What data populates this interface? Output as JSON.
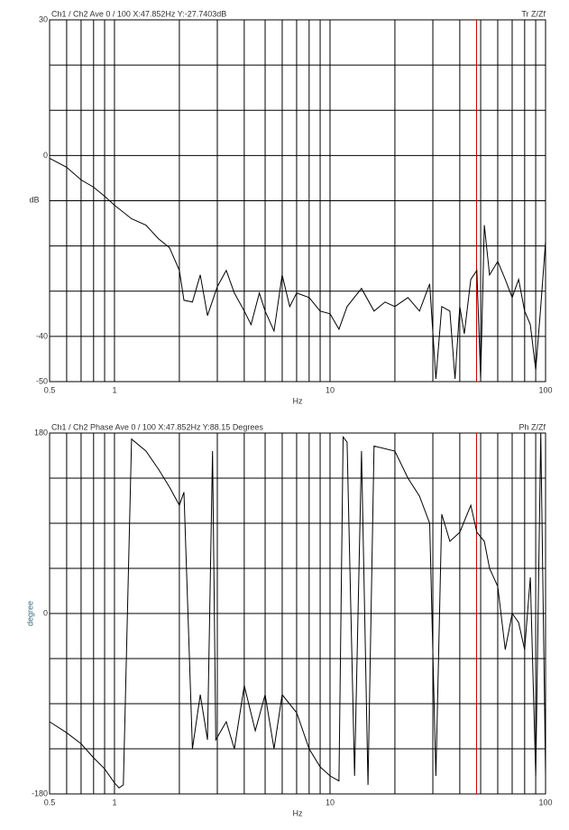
{
  "chart_data": [
    {
      "type": "line",
      "title": "Ch1 / Ch2  Ave 0 / 100  X:47.852Hz  Y:-27.7403dB",
      "trace": "Tr Z/Zf",
      "ylabel": "dB",
      "xlabel": "Hz",
      "log_x": true,
      "color": "#000000",
      "cursor_x": 47.852,
      "cursor_color": "#cc0000",
      "xlim": [
        0.5,
        100
      ],
      "xticks": [
        0.5,
        1,
        10,
        100
      ],
      "xgrid": [
        0.5,
        0.6,
        0.7,
        0.8,
        0.9,
        1,
        2,
        3,
        4,
        5,
        6,
        7,
        8,
        9,
        10,
        20,
        30,
        40,
        50,
        60,
        70,
        80,
        90,
        100
      ],
      "ylim": [
        -50,
        30
      ],
      "yticks": [
        30,
        0,
        -40,
        -50
      ],
      "ygrid": [
        30,
        20,
        10,
        0,
        -10,
        -20,
        -30,
        -40,
        -50
      ],
      "x": [
        0.5,
        0.6,
        0.7,
        0.8,
        0.9,
        1.0,
        1.2,
        1.4,
        1.6,
        1.8,
        2.0,
        2.1,
        2.3,
        2.5,
        2.7,
        3.0,
        3.3,
        3.6,
        4.0,
        4.3,
        4.7,
        5.0,
        5.5,
        6.0,
        6.5,
        7.0,
        8.0,
        9.0,
        10,
        11,
        12,
        14,
        16,
        18,
        20,
        23,
        26,
        29,
        31,
        33,
        36,
        38,
        40,
        42,
        45,
        48,
        50,
        52,
        55,
        60,
        65,
        70,
        75,
        80,
        85,
        90,
        95,
        100
      ],
      "values": [
        -0.6,
        -2.6,
        -5.4,
        -7,
        -9,
        -11,
        -14,
        -15.4,
        -18.4,
        -20.4,
        -25.4,
        -32,
        -32.4,
        -26.4,
        -35.4,
        -29,
        -25.4,
        -30.4,
        -34.4,
        -37.4,
        -30.4,
        -34.4,
        -38.8,
        -26.4,
        -33.4,
        -30.4,
        -31.4,
        -34.4,
        -35,
        -38.4,
        -33.4,
        -29.4,
        -34.4,
        -32.4,
        -33.4,
        -31.4,
        -34.4,
        -28.4,
        -49.4,
        -33.4,
        -34.4,
        -49.4,
        -33.4,
        -39.4,
        -27.4,
        -25.4,
        -49.4,
        -15.4,
        -26.4,
        -23.4,
        -27.4,
        -31.4,
        -27.4,
        -34.4,
        -37.4,
        -47.4,
        -33.4,
        -19
      ]
    },
    {
      "type": "line",
      "title": "Ch1 / Ch2  Phase Ave 0 / 100  X:47.852Hz  Y:88.15 Degrees",
      "trace": "Ph Z/Zf",
      "ylabel": "degree",
      "xlabel": "Hz",
      "log_x": true,
      "color": "#000000",
      "cursor_x": 47.852,
      "cursor_color": "#cc0000",
      "xlim": [
        0.5,
        100
      ],
      "xticks": [
        0.5,
        1,
        10,
        100
      ],
      "xgrid": [
        0.5,
        0.6,
        0.7,
        0.8,
        0.9,
        1,
        2,
        3,
        4,
        5,
        6,
        7,
        8,
        9,
        10,
        20,
        30,
        40,
        50,
        60,
        70,
        80,
        90,
        100
      ],
      "ylim": [
        -180,
        180
      ],
      "yticks": [
        180,
        0,
        -180
      ],
      "ygrid": [
        180,
        135,
        90,
        45,
        0,
        -45,
        -90,
        -135,
        -180
      ],
      "x": [
        0.5,
        0.6,
        0.7,
        0.8,
        0.9,
        1.0,
        1.05,
        1.1,
        1.2,
        1.4,
        1.6,
        1.8,
        2.0,
        2.1,
        2.3,
        2.5,
        2.7,
        2.85,
        2.95,
        3.3,
        3.6,
        4.0,
        4.5,
        5.0,
        5.5,
        6.0,
        7,
        8,
        9,
        10,
        11,
        11.5,
        12,
        13,
        14,
        15,
        16,
        20,
        23,
        26,
        29,
        31,
        33,
        36,
        40,
        45,
        48,
        52,
        55,
        60,
        65,
        70,
        75,
        80,
        85,
        90,
        95,
        100
      ],
      "values": [
        -108,
        -119,
        -130,
        -144,
        -155,
        -169,
        -174,
        -171,
        174,
        162,
        144,
        126,
        108,
        121,
        -135,
        -81,
        -126,
        162,
        -126,
        -108,
        -135,
        -72,
        -117,
        -81,
        -135,
        -81,
        -99,
        -135,
        -153,
        -162,
        -167,
        176,
        171,
        -162,
        162,
        -171,
        167,
        162,
        135,
        117,
        90,
        -162,
        99,
        72,
        81,
        108,
        81,
        72,
        45,
        27,
        -36,
        0,
        -9,
        -36,
        36,
        -162,
        180,
        -162
      ]
    }
  ]
}
